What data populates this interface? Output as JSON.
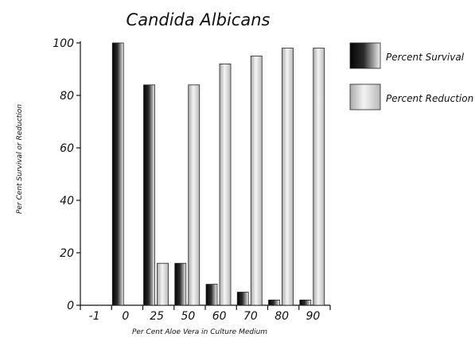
{
  "chart_data": {
    "type": "bar",
    "title": "Candida Albicans",
    "xlabel": "Per Cent Aloe Vera in Culture Medium",
    "ylabel": "Per Cent Survival or Reduction",
    "categories": [
      "-1",
      "0",
      "25",
      "50",
      "60",
      "70",
      "80",
      "90"
    ],
    "ylim": [
      0,
      100
    ],
    "yticks": [
      0,
      20,
      40,
      60,
      80,
      100
    ],
    "grid": false,
    "legend_position": "right",
    "series": [
      {
        "name": "Percent Survival",
        "values": [
          null,
          100,
          84,
          16,
          8,
          5,
          2,
          2
        ],
        "style": "dark-gradient"
      },
      {
        "name": "Percent Reduction",
        "values": [
          null,
          null,
          16,
          84,
          92,
          95,
          98,
          98
        ],
        "style": "light-gradient"
      }
    ]
  }
}
